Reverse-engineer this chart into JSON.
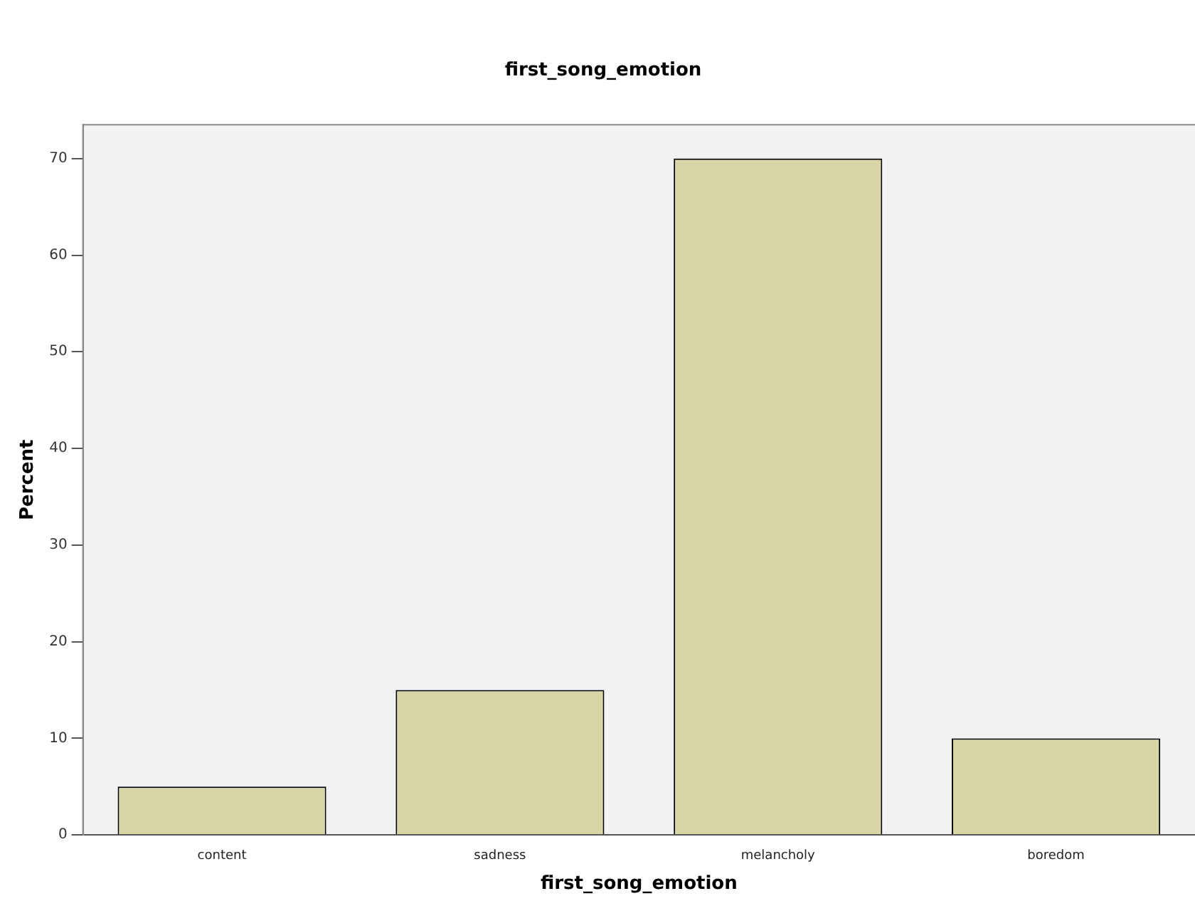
{
  "chart_data": {
    "type": "bar",
    "title": "first_song_emotion",
    "xlabel": "first_song_emotion",
    "ylabel": "Percent",
    "categories": [
      "content",
      "sadness",
      "melancholy",
      "boredom"
    ],
    "values": [
      5,
      15,
      70,
      10
    ],
    "color": "#d9d5a7",
    "ylim": [
      0,
      73.5
    ],
    "yticks": [
      0,
      10,
      20,
      30,
      40,
      50,
      60,
      70
    ],
    "grid": false,
    "legend": false
  }
}
